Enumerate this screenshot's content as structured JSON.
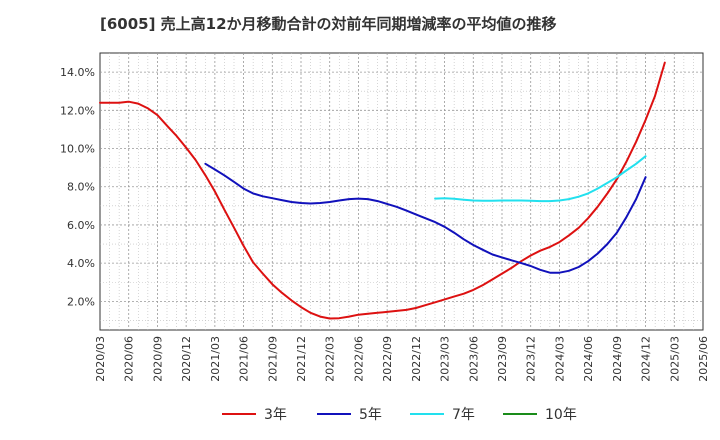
{
  "chart_data": {
    "type": "line",
    "title": "[6005]  売上高12か月移動合計の対前年同期増減率の平均値の推移",
    "xlabel": "",
    "ylabel": "",
    "ylim": [
      0.5,
      15.0
    ],
    "grid": true,
    "x_ticks": [
      "2020/03",
      "2020/06",
      "2020/09",
      "2020/12",
      "2021/03",
      "2021/06",
      "2021/09",
      "2021/12",
      "2022/03",
      "2022/06",
      "2022/09",
      "2022/12",
      "2023/03",
      "2023/06",
      "2023/09",
      "2023/12",
      "2024/03",
      "2024/06",
      "2024/09",
      "2024/12",
      "2025/03",
      "2025/06"
    ],
    "y_ticks": [
      {
        "value": 2,
        "label": "2.0%"
      },
      {
        "value": 4,
        "label": "4.0%"
      },
      {
        "value": 6,
        "label": "6.0%"
      },
      {
        "value": 8,
        "label": "8.0%"
      },
      {
        "value": 10,
        "label": "10.0%"
      },
      {
        "value": 12,
        "label": "12.0%"
      },
      {
        "value": 14,
        "label": "14.0%"
      }
    ],
    "legend_position": "bottom",
    "series": [
      {
        "name": "3年",
        "color": "#dd1111",
        "points": [
          [
            0,
            12.4
          ],
          [
            0.33,
            12.4
          ],
          [
            0.67,
            12.4
          ],
          [
            1,
            12.45
          ],
          [
            1.33,
            12.35
          ],
          [
            1.67,
            12.1
          ],
          [
            2,
            11.75
          ],
          [
            2.33,
            11.2
          ],
          [
            2.67,
            10.65
          ],
          [
            3,
            10.05
          ],
          [
            3.33,
            9.4
          ],
          [
            3.67,
            8.6
          ],
          [
            4,
            7.75
          ],
          [
            4.33,
            6.8
          ],
          [
            4.67,
            5.85
          ],
          [
            5,
            4.9
          ],
          [
            5.33,
            4.05
          ],
          [
            5.67,
            3.45
          ],
          [
            6,
            2.9
          ],
          [
            6.33,
            2.45
          ],
          [
            6.67,
            2.05
          ],
          [
            7,
            1.7
          ],
          [
            7.33,
            1.4
          ],
          [
            7.67,
            1.2
          ],
          [
            8,
            1.1
          ],
          [
            8.33,
            1.12
          ],
          [
            8.67,
            1.2
          ],
          [
            9,
            1.3
          ],
          [
            9.33,
            1.35
          ],
          [
            9.67,
            1.4
          ],
          [
            10,
            1.45
          ],
          [
            10.33,
            1.5
          ],
          [
            10.67,
            1.55
          ],
          [
            11,
            1.65
          ],
          [
            11.33,
            1.8
          ],
          [
            11.67,
            1.95
          ],
          [
            12,
            2.1
          ],
          [
            12.33,
            2.25
          ],
          [
            12.67,
            2.4
          ],
          [
            13,
            2.6
          ],
          [
            13.33,
            2.85
          ],
          [
            13.67,
            3.15
          ],
          [
            14,
            3.45
          ],
          [
            14.33,
            3.75
          ],
          [
            14.67,
            4.1
          ],
          [
            15,
            4.4
          ],
          [
            15.33,
            4.65
          ],
          [
            15.67,
            4.85
          ],
          [
            16,
            5.1
          ],
          [
            16.33,
            5.45
          ],
          [
            16.67,
            5.85
          ],
          [
            17,
            6.35
          ],
          [
            17.33,
            6.95
          ],
          [
            17.67,
            7.65
          ],
          [
            18,
            8.4
          ],
          [
            18.33,
            9.3
          ],
          [
            18.67,
            10.35
          ],
          [
            19,
            11.5
          ],
          [
            19.33,
            12.75
          ],
          [
            19.67,
            14.5
          ]
        ]
      },
      {
        "name": "5年",
        "color": "#1111bb",
        "points": [
          [
            3.67,
            9.2
          ],
          [
            4,
            8.9
          ],
          [
            4.33,
            8.6
          ],
          [
            4.67,
            8.25
          ],
          [
            5,
            7.9
          ],
          [
            5.33,
            7.65
          ],
          [
            5.67,
            7.5
          ],
          [
            6,
            7.4
          ],
          [
            6.33,
            7.3
          ],
          [
            6.67,
            7.2
          ],
          [
            7,
            7.15
          ],
          [
            7.33,
            7.12
          ],
          [
            7.67,
            7.15
          ],
          [
            8,
            7.2
          ],
          [
            8.33,
            7.28
          ],
          [
            8.67,
            7.35
          ],
          [
            9,
            7.38
          ],
          [
            9.33,
            7.35
          ],
          [
            9.67,
            7.25
          ],
          [
            10,
            7.1
          ],
          [
            10.33,
            6.95
          ],
          [
            10.67,
            6.75
          ],
          [
            11,
            6.55
          ],
          [
            11.33,
            6.35
          ],
          [
            11.67,
            6.15
          ],
          [
            12,
            5.9
          ],
          [
            12.33,
            5.6
          ],
          [
            12.67,
            5.25
          ],
          [
            13,
            4.95
          ],
          [
            13.33,
            4.7
          ],
          [
            13.67,
            4.45
          ],
          [
            14,
            4.3
          ],
          [
            14.33,
            4.15
          ],
          [
            14.67,
            4.0
          ],
          [
            15,
            3.85
          ],
          [
            15.33,
            3.65
          ],
          [
            15.67,
            3.5
          ],
          [
            16,
            3.5
          ],
          [
            16.33,
            3.6
          ],
          [
            16.67,
            3.8
          ],
          [
            17,
            4.1
          ],
          [
            17.33,
            4.5
          ],
          [
            17.67,
            5.0
          ],
          [
            18,
            5.6
          ],
          [
            18.33,
            6.4
          ],
          [
            18.67,
            7.35
          ],
          [
            19,
            8.5
          ]
        ]
      },
      {
        "name": "7年",
        "color": "#22e0ee",
        "points": [
          [
            11.67,
            7.38
          ],
          [
            12,
            7.4
          ],
          [
            12.33,
            7.37
          ],
          [
            12.67,
            7.32
          ],
          [
            13,
            7.28
          ],
          [
            13.33,
            7.27
          ],
          [
            13.67,
            7.27
          ],
          [
            14,
            7.28
          ],
          [
            14.33,
            7.28
          ],
          [
            14.67,
            7.28
          ],
          [
            15,
            7.27
          ],
          [
            15.33,
            7.25
          ],
          [
            15.67,
            7.25
          ],
          [
            16,
            7.28
          ],
          [
            16.33,
            7.35
          ],
          [
            16.67,
            7.48
          ],
          [
            17,
            7.65
          ],
          [
            17.33,
            7.9
          ],
          [
            17.67,
            8.2
          ],
          [
            18,
            8.5
          ],
          [
            18.33,
            8.85
          ],
          [
            18.67,
            9.2
          ],
          [
            19,
            9.6
          ]
        ]
      },
      {
        "name": "10年",
        "color": "#1a8c1a",
        "points": []
      }
    ]
  }
}
